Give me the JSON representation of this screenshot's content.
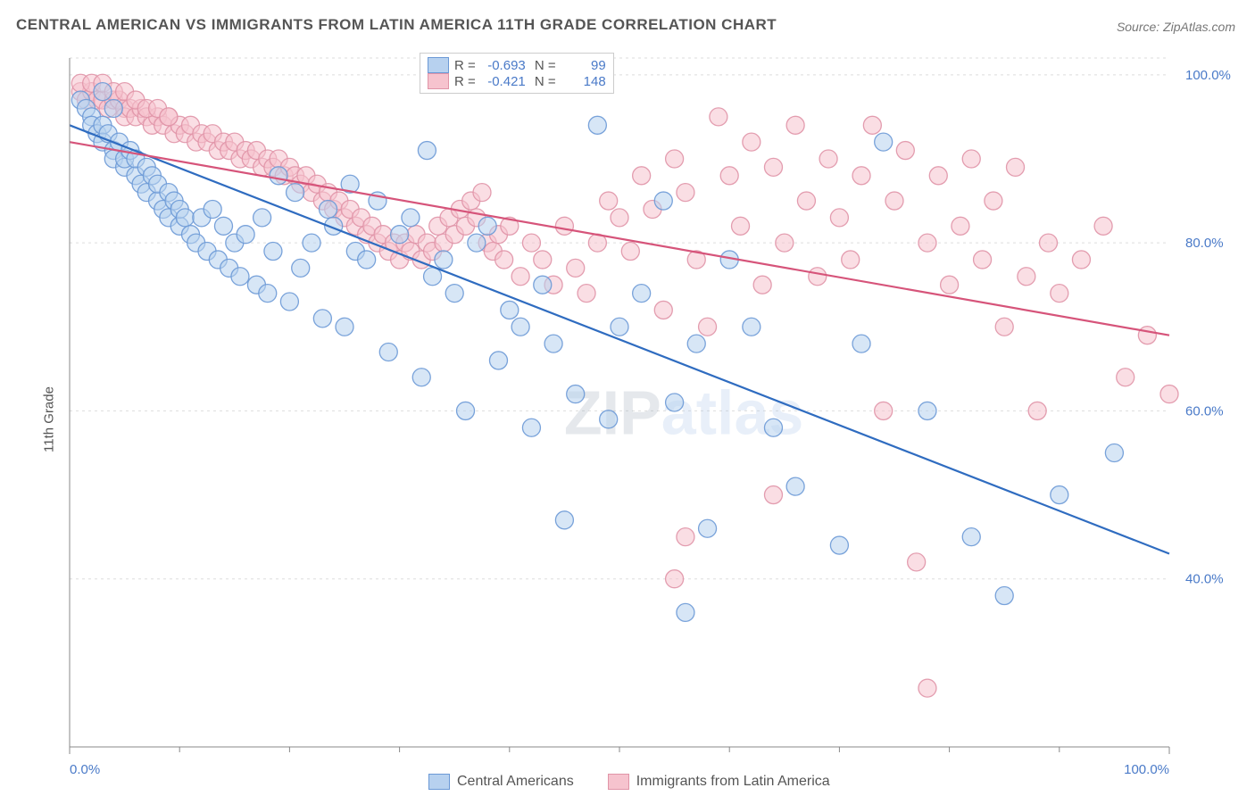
{
  "title": "CENTRAL AMERICAN VS IMMIGRANTS FROM LATIN AMERICA 11TH GRADE CORRELATION CHART",
  "source": "Source: ZipAtlas.com",
  "ylabel": "11th Grade",
  "watermark": {
    "text1": "ZIP",
    "text2": "atlas",
    "color1": "#9aa8b8",
    "color2": "#a7c3e8"
  },
  "chart": {
    "type": "scatter",
    "background_color": "#ffffff",
    "grid_color": "#dddddd",
    "grid_dash": "3,4",
    "axis_color": "#888888",
    "xlim": [
      0,
      100
    ],
    "ylim": [
      20,
      102
    ],
    "x_ticks": [
      0,
      100
    ],
    "x_tick_labels": [
      "0.0%",
      "100.0%"
    ],
    "x_minor_ticks": [
      10,
      20,
      30,
      40,
      50,
      60,
      70,
      80,
      90
    ],
    "y_ticks": [
      40,
      60,
      80,
      100
    ],
    "y_tick_labels": [
      "40.0%",
      "60.0%",
      "80.0%",
      "100.0%"
    ],
    "tick_label_color": "#4a7ac8",
    "tick_label_fontsize": 15,
    "marker_radius": 10,
    "marker_opacity": 0.55,
    "line_width": 2.2,
    "series": [
      {
        "key": "central",
        "label": "Central Americans",
        "fill": "#b7d1ef",
        "stroke": "#6b99d6",
        "R": "-0.693",
        "N": "99",
        "trend": {
          "x1": 0,
          "y1": 94,
          "x2": 100,
          "y2": 43,
          "color": "#2f6cc0"
        },
        "points": [
          [
            1,
            97
          ],
          [
            1.5,
            96
          ],
          [
            2,
            95
          ],
          [
            2,
            94
          ],
          [
            2.5,
            93
          ],
          [
            3,
            94
          ],
          [
            3,
            92
          ],
          [
            3.5,
            93
          ],
          [
            4,
            91
          ],
          [
            4,
            90
          ],
          [
            4.5,
            92
          ],
          [
            5,
            89
          ],
          [
            5,
            90
          ],
          [
            5.5,
            91
          ],
          [
            6,
            88
          ],
          [
            6,
            90
          ],
          [
            6.5,
            87
          ],
          [
            7,
            89
          ],
          [
            7,
            86
          ],
          [
            7.5,
            88
          ],
          [
            8,
            85
          ],
          [
            8,
            87
          ],
          [
            8.5,
            84
          ],
          [
            9,
            86
          ],
          [
            9,
            83
          ],
          [
            9.5,
            85
          ],
          [
            10,
            82
          ],
          [
            10,
            84
          ],
          [
            10.5,
            83
          ],
          [
            11,
            81
          ],
          [
            11.5,
            80
          ],
          [
            12,
            83
          ],
          [
            12.5,
            79
          ],
          [
            13,
            84
          ],
          [
            13.5,
            78
          ],
          [
            14,
            82
          ],
          [
            14.5,
            77
          ],
          [
            15,
            80
          ],
          [
            15.5,
            76
          ],
          [
            16,
            81
          ],
          [
            17,
            75
          ],
          [
            17.5,
            83
          ],
          [
            18,
            74
          ],
          [
            18.5,
            79
          ],
          [
            19,
            88
          ],
          [
            20,
            73
          ],
          [
            20.5,
            86
          ],
          [
            21,
            77
          ],
          [
            22,
            80
          ],
          [
            23,
            71
          ],
          [
            23.5,
            84
          ],
          [
            24,
            82
          ],
          [
            25,
            70
          ],
          [
            25.5,
            87
          ],
          [
            26,
            79
          ],
          [
            27,
            78
          ],
          [
            28,
            85
          ],
          [
            29,
            67
          ],
          [
            30,
            81
          ],
          [
            31,
            83
          ],
          [
            32,
            64
          ],
          [
            32.5,
            91
          ],
          [
            33,
            76
          ],
          [
            34,
            78
          ],
          [
            35,
            74
          ],
          [
            36,
            60
          ],
          [
            37,
            80
          ],
          [
            38,
            82
          ],
          [
            39,
            66
          ],
          [
            40,
            72
          ],
          [
            41,
            70
          ],
          [
            42,
            58
          ],
          [
            43,
            75
          ],
          [
            44,
            68
          ],
          [
            45,
            47
          ],
          [
            46,
            62
          ],
          [
            48,
            94
          ],
          [
            49,
            59
          ],
          [
            50,
            70
          ],
          [
            52,
            74
          ],
          [
            54,
            85
          ],
          [
            55,
            61
          ],
          [
            56,
            36
          ],
          [
            57,
            68
          ],
          [
            58,
            46
          ],
          [
            60,
            78
          ],
          [
            62,
            70
          ],
          [
            64,
            58
          ],
          [
            66,
            51
          ],
          [
            70,
            44
          ],
          [
            72,
            68
          ],
          [
            74,
            92
          ],
          [
            78,
            60
          ],
          [
            82,
            45
          ],
          [
            85,
            38
          ],
          [
            90,
            50
          ],
          [
            95,
            55
          ],
          [
            3,
            98
          ],
          [
            4,
            96
          ]
        ]
      },
      {
        "key": "latin",
        "label": "Immigrants from Latin America",
        "fill": "#f6c3ce",
        "stroke": "#e094a7",
        "R": "-0.421",
        "N": "148",
        "trend": {
          "x1": 0,
          "y1": 92,
          "x2": 100,
          "y2": 69,
          "color": "#d6547a"
        },
        "points": [
          [
            1,
            98
          ],
          [
            1.5,
            97
          ],
          [
            2,
            98
          ],
          [
            2.5,
            97
          ],
          [
            3,
            97
          ],
          [
            3.5,
            96
          ],
          [
            4,
            97
          ],
          [
            4.5,
            97
          ],
          [
            5,
            96
          ],
          [
            5,
            95
          ],
          [
            5.5,
            96
          ],
          [
            6,
            95
          ],
          [
            6.5,
            96
          ],
          [
            7,
            95
          ],
          [
            7.5,
            94
          ],
          [
            8,
            95
          ],
          [
            8.5,
            94
          ],
          [
            9,
            95
          ],
          [
            9.5,
            93
          ],
          [
            10,
            94
          ],
          [
            10.5,
            93
          ],
          [
            11,
            94
          ],
          [
            11.5,
            92
          ],
          [
            12,
            93
          ],
          [
            12.5,
            92
          ],
          [
            13,
            93
          ],
          [
            13.5,
            91
          ],
          [
            14,
            92
          ],
          [
            14.5,
            91
          ],
          [
            15,
            92
          ],
          [
            15.5,
            90
          ],
          [
            16,
            91
          ],
          [
            16.5,
            90
          ],
          [
            17,
            91
          ],
          [
            17.5,
            89
          ],
          [
            18,
            90
          ],
          [
            18.5,
            89
          ],
          [
            19,
            90
          ],
          [
            19.5,
            88
          ],
          [
            20,
            89
          ],
          [
            20.5,
            88
          ],
          [
            21,
            87
          ],
          [
            21.5,
            88
          ],
          [
            22,
            86
          ],
          [
            22.5,
            87
          ],
          [
            23,
            85
          ],
          [
            23.5,
            86
          ],
          [
            24,
            84
          ],
          [
            24.5,
            85
          ],
          [
            25,
            83
          ],
          [
            25.5,
            84
          ],
          [
            26,
            82
          ],
          [
            26.5,
            83
          ],
          [
            27,
            81
          ],
          [
            27.5,
            82
          ],
          [
            28,
            80
          ],
          [
            28.5,
            81
          ],
          [
            29,
            79
          ],
          [
            29.5,
            80
          ],
          [
            30,
            78
          ],
          [
            30.5,
            80
          ],
          [
            31,
            79
          ],
          [
            31.5,
            81
          ],
          [
            32,
            78
          ],
          [
            32.5,
            80
          ],
          [
            33,
            79
          ],
          [
            33.5,
            82
          ],
          [
            34,
            80
          ],
          [
            34.5,
            83
          ],
          [
            35,
            81
          ],
          [
            35.5,
            84
          ],
          [
            36,
            82
          ],
          [
            36.5,
            85
          ],
          [
            37,
            83
          ],
          [
            37.5,
            86
          ],
          [
            38,
            80
          ],
          [
            38.5,
            79
          ],
          [
            39,
            81
          ],
          [
            39.5,
            78
          ],
          [
            40,
            82
          ],
          [
            41,
            76
          ],
          [
            42,
            80
          ],
          [
            43,
            78
          ],
          [
            44,
            75
          ],
          [
            45,
            82
          ],
          [
            46,
            77
          ],
          [
            47,
            74
          ],
          [
            48,
            80
          ],
          [
            49,
            85
          ],
          [
            50,
            83
          ],
          [
            51,
            79
          ],
          [
            52,
            88
          ],
          [
            53,
            84
          ],
          [
            54,
            72
          ],
          [
            55,
            90
          ],
          [
            56,
            86
          ],
          [
            57,
            78
          ],
          [
            58,
            70
          ],
          [
            59,
            95
          ],
          [
            60,
            88
          ],
          [
            61,
            82
          ],
          [
            62,
            92
          ],
          [
            63,
            75
          ],
          [
            64,
            89
          ],
          [
            65,
            80
          ],
          [
            66,
            94
          ],
          [
            67,
            85
          ],
          [
            68,
            76
          ],
          [
            69,
            90
          ],
          [
            70,
            83
          ],
          [
            71,
            78
          ],
          [
            72,
            88
          ],
          [
            73,
            94
          ],
          [
            74,
            60
          ],
          [
            75,
            85
          ],
          [
            76,
            91
          ],
          [
            77,
            42
          ],
          [
            78,
            80
          ],
          [
            79,
            88
          ],
          [
            80,
            75
          ],
          [
            81,
            82
          ],
          [
            82,
            90
          ],
          [
            83,
            78
          ],
          [
            84,
            85
          ],
          [
            85,
            70
          ],
          [
            86,
            89
          ],
          [
            87,
            76
          ],
          [
            88,
            60
          ],
          [
            89,
            80
          ],
          [
            90,
            74
          ],
          [
            92,
            78
          ],
          [
            94,
            82
          ],
          [
            96,
            64
          ],
          [
            98,
            69
          ],
          [
            100,
            62
          ],
          [
            55,
            40
          ],
          [
            56,
            45
          ],
          [
            78,
            27
          ],
          [
            64,
            50
          ],
          [
            1,
            99
          ],
          [
            2,
            99
          ],
          [
            3,
            99
          ],
          [
            4,
            98
          ],
          [
            5,
            98
          ],
          [
            6,
            97
          ],
          [
            7,
            96
          ],
          [
            8,
            96
          ],
          [
            9,
            95
          ]
        ]
      }
    ]
  }
}
